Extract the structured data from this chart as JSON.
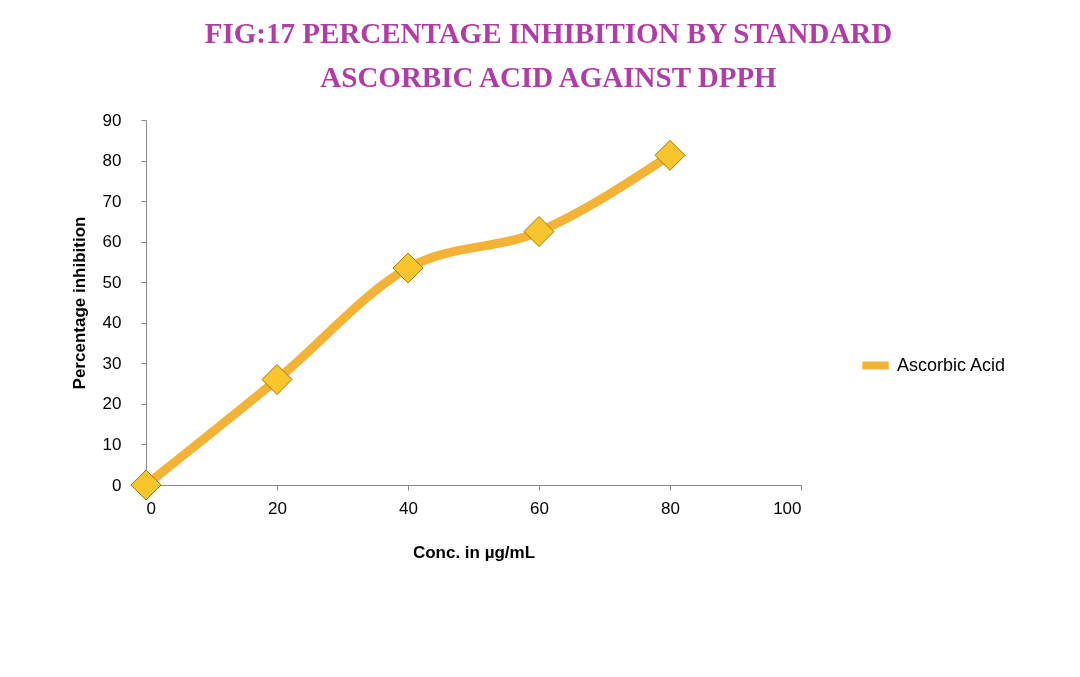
{
  "chart_data": {
    "type": "line",
    "title": "FIG:17 PERCENTAGE INHIBITION BY STANDARD ASCORBIC ACID AGAINST DPPH",
    "xlabel": "Conc. in µg/mL",
    "ylabel": "Percentage inhibition",
    "x": [
      0,
      20,
      40,
      60,
      80
    ],
    "series": [
      {
        "name": "Ascorbic Acid",
        "color": "#f5b335",
        "values": [
          0,
          26,
          53.5,
          62.5,
          81.3
        ]
      }
    ],
    "xlim": [
      0,
      100
    ],
    "xticks": [
      0,
      20,
      40,
      60,
      80,
      100
    ],
    "ylim": [
      0,
      90
    ],
    "yticks": [
      0,
      10,
      20,
      30,
      40,
      50,
      60,
      70,
      80,
      90
    ],
    "grid": false,
    "legend": "right",
    "marker": "diamond",
    "line_style": "solid"
  }
}
